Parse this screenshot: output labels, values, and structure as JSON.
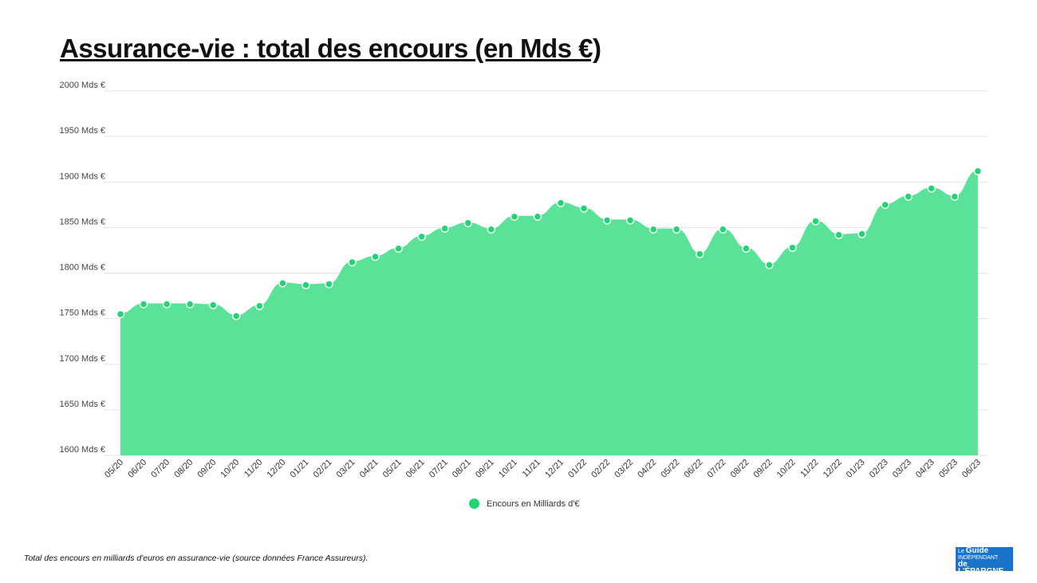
{
  "chart_data": {
    "type": "area",
    "title": "Assurance-vie : total des encours (en Mds €)",
    "xlabel": "",
    "ylabel": "",
    "ylim": [
      1600,
      2000
    ],
    "yticks": [
      "1600 Mds €",
      "1650 Mds €",
      "1700 Mds €",
      "1750 Mds €",
      "1800 Mds €",
      "1850 Mds €",
      "1900 Mds €",
      "1950 Mds €",
      "2000 Mds €"
    ],
    "grid": true,
    "legend_position": "bottom",
    "categories": [
      "05/20",
      "06/20",
      "07/20",
      "08/20",
      "09/20",
      "10/20",
      "11/20",
      "12/20",
      "01/21",
      "02/21",
      "03/21",
      "04/21",
      "05/21",
      "06/21",
      "07/21",
      "08/21",
      "09/21",
      "10/21",
      "11/21",
      "12/21",
      "01/22",
      "02/22",
      "03/22",
      "04/22",
      "05/22",
      "06/22",
      "07/22",
      "08/22",
      "09/22",
      "10/22",
      "11/22",
      "12/22",
      "01/23",
      "02/23",
      "03/23",
      "04/23",
      "05/23",
      "06/23"
    ],
    "series": [
      {
        "name": "Encours en Milliards d'€",
        "color": "#1fd673",
        "values": [
          1755,
          1766,
          1766,
          1766,
          1765,
          1753,
          1764,
          1789,
          1787,
          1788,
          1812,
          1818,
          1827,
          1840,
          1849,
          1855,
          1848,
          1862,
          1862,
          1877,
          1871,
          1858,
          1858,
          1848,
          1848,
          1821,
          1848,
          1827,
          1809,
          1828,
          1857,
          1842,
          1843,
          1875,
          1884,
          1893,
          1884,
          1912
        ]
      }
    ]
  },
  "footer": "Total des encours en milliards d'euros en assurance-vie (source données France Assureurs).",
  "logo": {
    "line1": "Le Guide",
    "line2": "INDÉPENDANT",
    "line3": "de L'ÉPARGNE"
  }
}
